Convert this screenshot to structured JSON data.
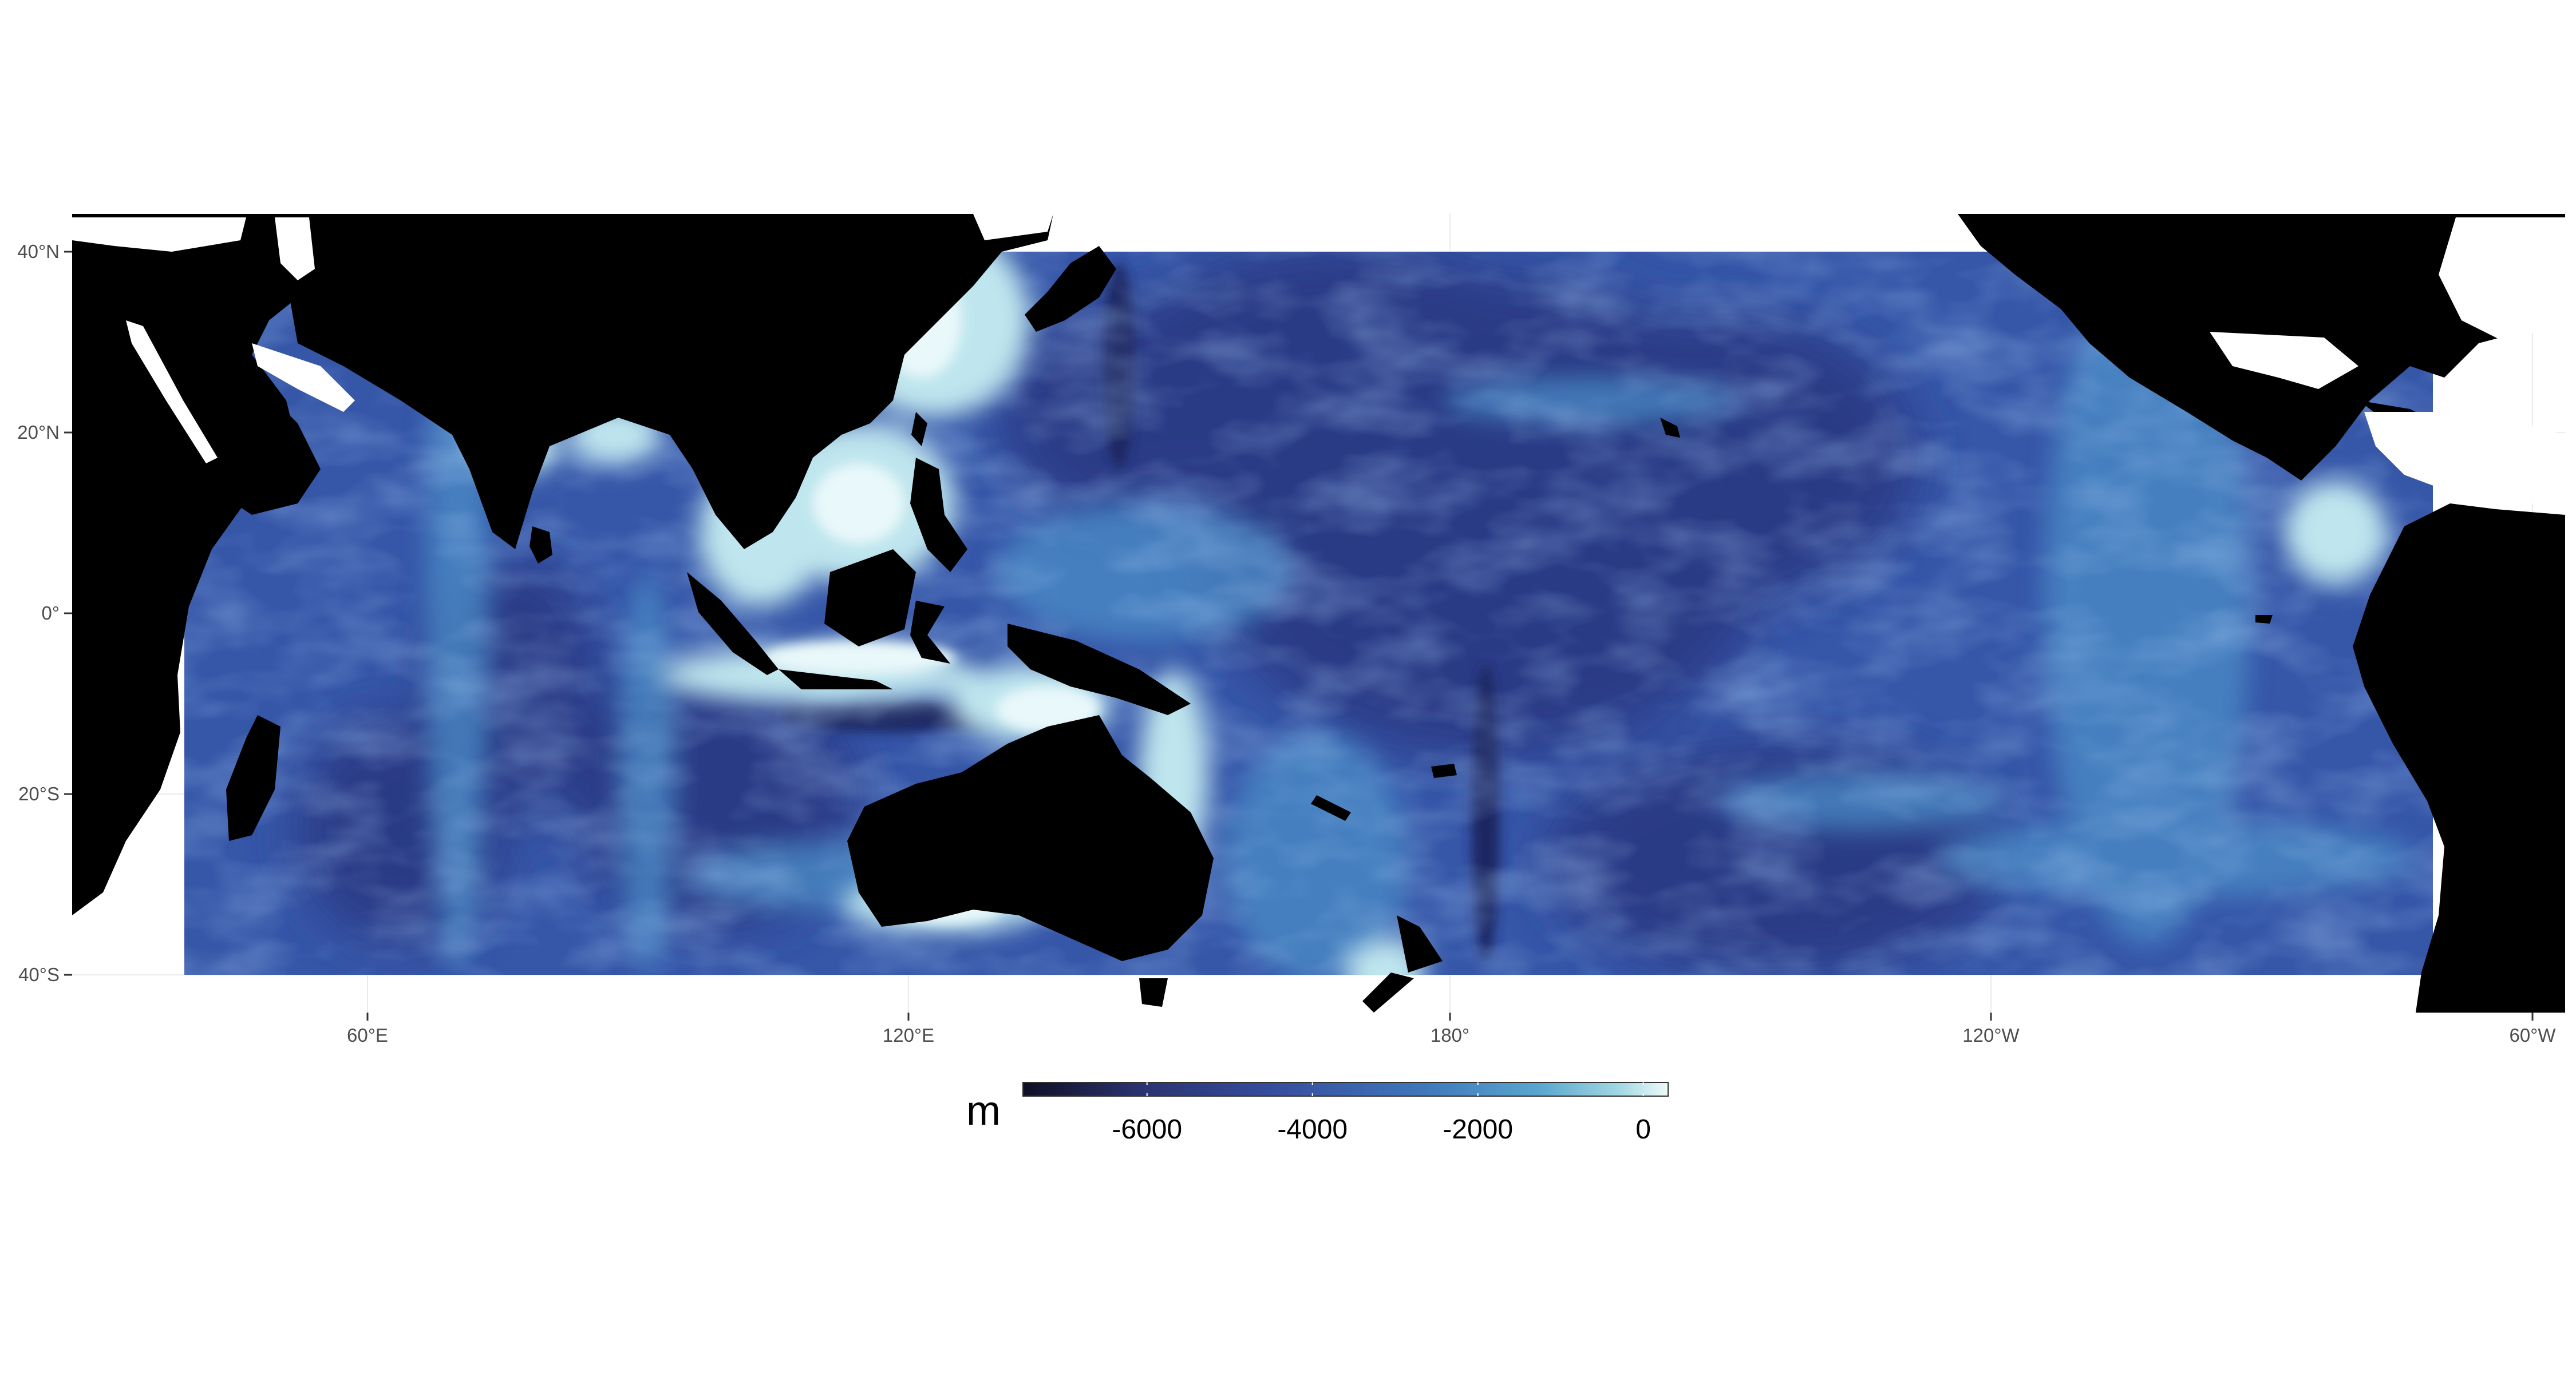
{
  "map": {
    "y_axis_labels": [
      "40°N",
      "20°N",
      "0°",
      "20°S",
      "40°S"
    ],
    "x_axis_labels": [
      "60°E",
      "120°E",
      "180°",
      "120°W",
      "60°W"
    ],
    "land_color": "#000000",
    "outside_color": "#ffffff",
    "panel_grid_color": "#ebebeb"
  },
  "legend": {
    "title": "m",
    "labels": [
      "-6000",
      "-4000",
      "-2000",
      "0"
    ],
    "values": [
      -6000,
      -4000,
      -2000,
      0
    ],
    "range": [
      -7500,
      300
    ],
    "colors": [
      "#0f0f24",
      "#2b3270",
      "#364fa0",
      "#3e78bb",
      "#5aa6cf",
      "#9fd6e2",
      "#eefafa"
    ]
  },
  "chart_data": {
    "type": "heatmap",
    "variable": "depth",
    "unit": "m",
    "x_range_lon": [
      30,
      300
    ],
    "y_range_lat": [
      -40,
      40
    ],
    "scale_range": [
      -7500,
      300
    ],
    "x_ticks": [
      "60°E",
      "120°E",
      "180°",
      "120°W",
      "60°W"
    ],
    "y_ticks": [
      "40°N",
      "20°N",
      "0°",
      "20°S",
      "40°S"
    ],
    "legend_ticks": [
      -6000,
      -4000,
      -2000,
      0
    ],
    "legend_position": "bottom"
  }
}
